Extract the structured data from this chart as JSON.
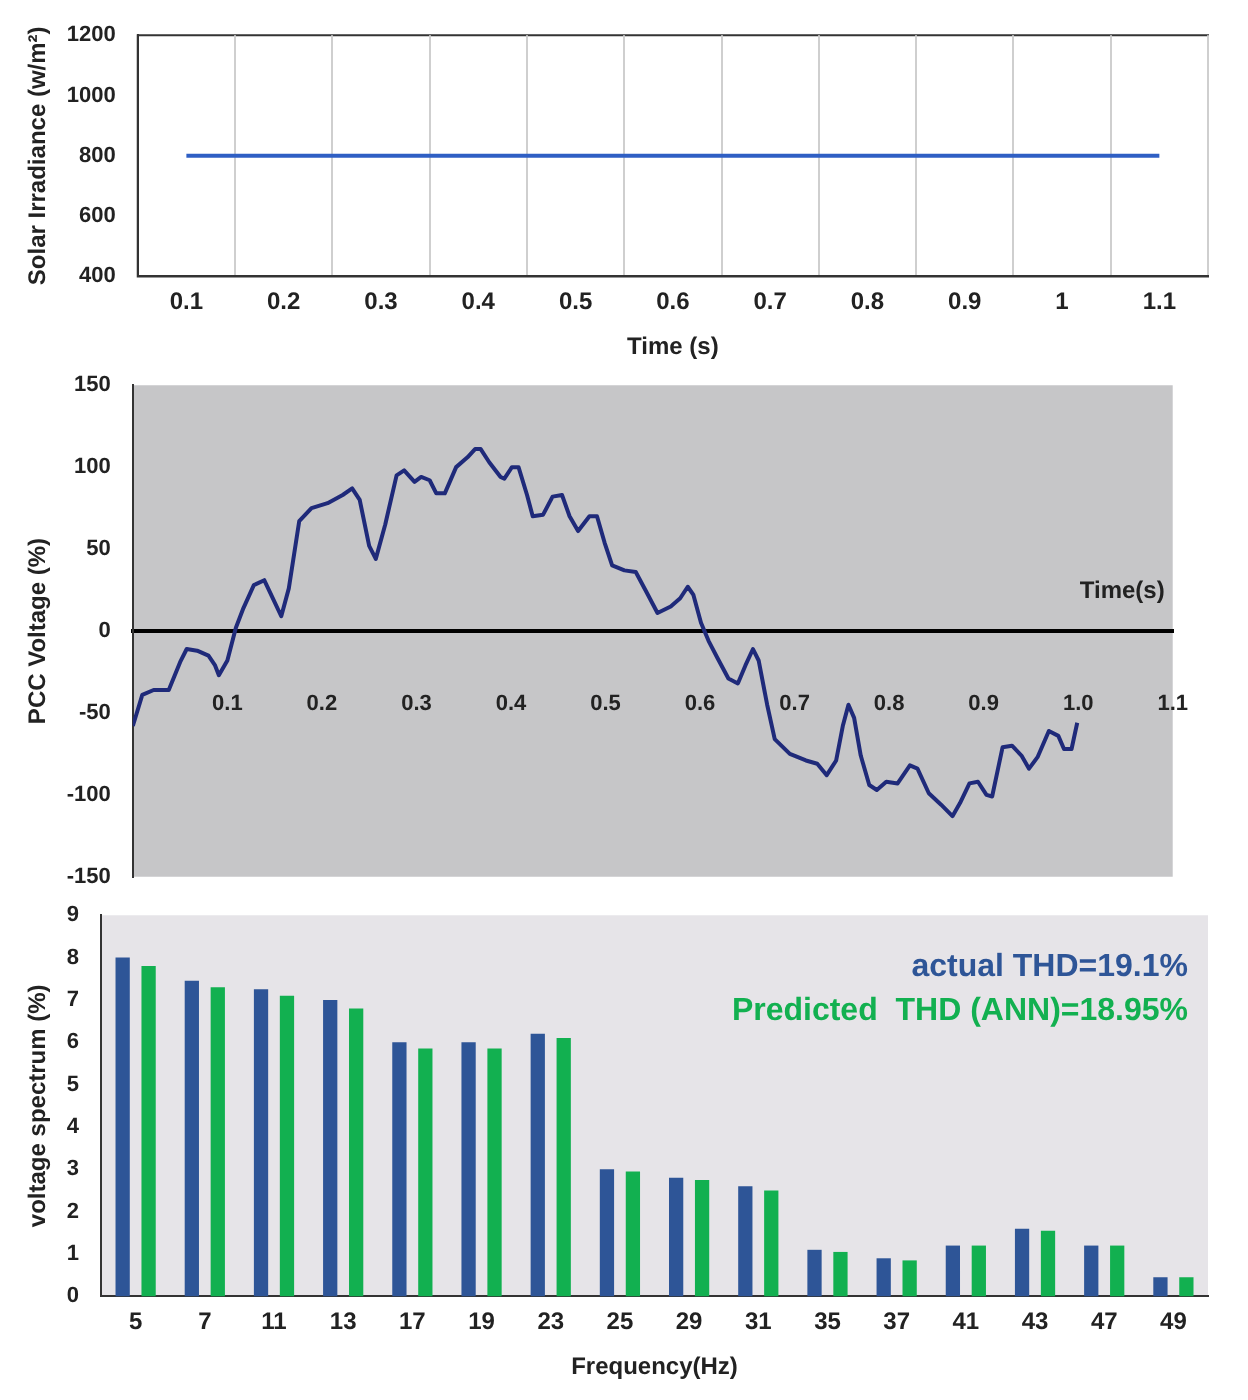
{
  "chart_data": [
    {
      "type": "line",
      "categories": [
        "0.1",
        "0.2",
        "0.3",
        "0.4",
        "0.5",
        "0.6",
        "0.7",
        "0.8",
        "0.9",
        "1",
        "1.1"
      ],
      "values": [
        800,
        800,
        800,
        800,
        800,
        800,
        800,
        800,
        800,
        800,
        800
      ],
      "color": "#2f5fc4",
      "ylabel": "Solar Irradiance (w/m²)",
      "xlabel": "Time (s)",
      "ylim": [
        400,
        1200
      ],
      "yticks": [
        400,
        600,
        800,
        1000,
        1200
      ],
      "grid": "x"
    },
    {
      "type": "line",
      "color": "#1f2a7a",
      "ylabel": "PCC Voltage (%)",
      "xlabel": "Time(s)",
      "xlim": [
        0,
        1.1
      ],
      "ylim": [
        -150,
        150
      ],
      "yticks": [
        -150,
        -100,
        -50,
        0,
        50,
        100,
        150
      ],
      "xticks": [
        0.1,
        0.2,
        0.3,
        0.4,
        0.5,
        0.6,
        0.7,
        0.8,
        0.9,
        {
          "value": 1,
          "label": "1.0"
        },
        1.1
      ],
      "x": [
        0,
        0.01,
        0.022,
        0.038,
        0.05,
        0.057,
        0.068,
        0.08,
        0.087,
        0.091,
        0.1,
        0.109,
        0.117,
        0.128,
        0.139,
        0.148,
        0.157,
        0.165,
        0.176,
        0.189,
        0.206,
        0.222,
        0.232,
        0.24,
        0.25,
        0.257,
        0.267,
        0.279,
        0.287,
        0.298,
        0.305,
        0.314,
        0.321,
        0.33,
        0.342,
        0.354,
        0.362,
        0.368,
        0.377,
        0.389,
        0.393,
        0.401,
        0.408,
        0.417,
        0.423,
        0.434,
        0.444,
        0.454,
        0.462,
        0.471,
        0.483,
        0.491,
        0.499,
        0.507,
        0.52,
        0.532,
        0.544,
        0.555,
        0.569,
        0.579,
        0.587,
        0.593,
        0.601,
        0.609,
        0.618,
        0.63,
        0.64,
        0.648,
        0.656,
        0.662,
        0.671,
        0.679,
        0.695,
        0.712,
        0.724,
        0.734,
        0.744,
        0.751,
        0.757,
        0.763,
        0.77,
        0.779,
        0.787,
        0.797,
        0.809,
        0.822,
        0.83,
        0.842,
        0.855,
        0.867,
        0.875,
        0.885,
        0.894,
        0.903,
        0.909,
        0.92,
        0.93,
        0.94,
        0.948,
        0.957,
        0.969,
        0.979,
        0.985,
        0.993,
        0.999
      ],
      "values": [
        -58,
        -39,
        -36,
        -36,
        -19,
        -11,
        -12,
        -15,
        -21,
        -27,
        -18,
        2,
        14,
        28,
        31,
        20,
        9,
        26,
        67,
        75,
        78,
        83,
        87,
        80,
        52,
        44,
        65,
        95,
        98,
        91,
        94,
        92,
        84,
        84,
        100,
        106,
        111,
        111,
        103,
        94,
        93,
        100,
        100,
        83,
        70,
        71,
        82,
        83,
        70,
        61,
        70,
        70,
        54,
        40,
        37,
        36,
        23,
        11,
        15,
        20,
        27,
        22,
        5,
        -6,
        -16,
        -29,
        -32,
        -21,
        -11,
        -18,
        -45,
        -66,
        -75,
        -79,
        -81,
        -88,
        -79,
        -58,
        -45,
        -53,
        -76,
        -94,
        -97,
        -92,
        -93,
        -82,
        -84,
        -99,
        -106,
        -113,
        -105,
        -93,
        -92,
        -100,
        -101,
        -71,
        -70,
        -76,
        -84,
        -77,
        -61,
        -64,
        -72,
        -72,
        -56
      ]
    },
    {
      "type": "bar",
      "categories": [
        "5",
        "7",
        "11",
        "13",
        "17",
        "19",
        "23",
        "25",
        "29",
        "31",
        "35",
        "37",
        "41",
        "43",
        "47",
        "49"
      ],
      "xlabel": "Frequency(Hz)",
      "ylabel": "voltage spectrum (%)",
      "ylim": [
        0,
        9
      ],
      "yticks": [
        0,
        1,
        2,
        3,
        4,
        5,
        6,
        7,
        8,
        9
      ],
      "legend": "top right",
      "series": [
        {
          "name": "actual THD=19.1%",
          "color": "#2e5597",
          "values": [
            8,
            7.45,
            7.25,
            7,
            6,
            6,
            6.2,
            3,
            2.8,
            2.6,
            1.1,
            0.9,
            1.2,
            1.6,
            1.2,
            0.45
          ]
        },
        {
          "name": "Predicted  THD (ANN)=18.95%",
          "color": "#12b050",
          "values": [
            7.8,
            7.3,
            7.1,
            6.8,
            5.85,
            5.85,
            6.1,
            2.95,
            2.75,
            2.5,
            1.05,
            0.85,
            1.2,
            1.55,
            1.2,
            0.45
          ]
        }
      ]
    }
  ]
}
